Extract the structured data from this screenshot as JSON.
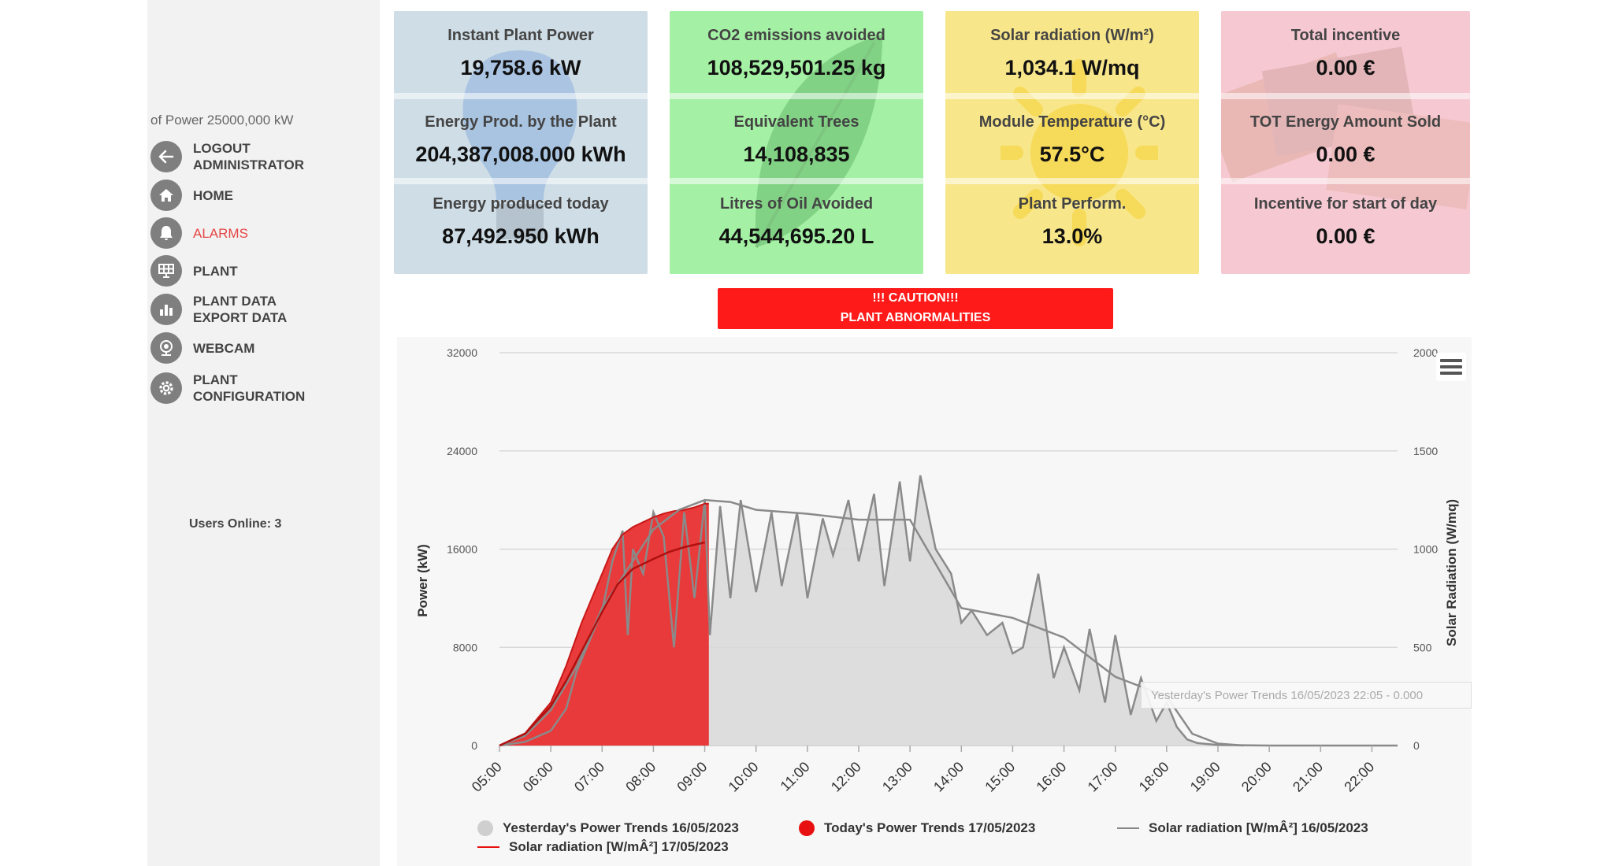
{
  "sidebar": {
    "power_note": "of Power 25000,000 kW",
    "menu": [
      {
        "label": "LOGOUT\nADMINISTRATOR",
        "icon": "arrow-left-icon"
      },
      {
        "label": "HOME",
        "icon": "home-icon"
      },
      {
        "label": "ALARMS",
        "icon": "bell-icon"
      },
      {
        "label": "PLANT",
        "icon": "solar-panel-icon"
      },
      {
        "label": "PLANT DATA\nEXPORT DATA",
        "icon": "bar-chart-icon"
      },
      {
        "label": "WEBCAM",
        "icon": "webcam-icon"
      },
      {
        "label": "PLANT\nCONFIGURATION",
        "icon": "gear-icon"
      }
    ],
    "users_online_label": "Users Online:",
    "users_online_count": "3"
  },
  "tiles": [
    {
      "color": "#cfdde6",
      "metrics": [
        {
          "label": "Instant Plant Power",
          "value": "19,758.6 kW"
        },
        {
          "label": "Energy Prod. by the Plant",
          "value": "204,387,008.000 kWh"
        },
        {
          "label": "Energy produced today",
          "value": "87,492.950 kWh"
        }
      ]
    },
    {
      "color": "#a4f0a4",
      "metrics": [
        {
          "label": "CO2 emissions avoided",
          "value": "108,529,501.25 kg"
        },
        {
          "label": "Equivalent Trees",
          "value": "14,108,835"
        },
        {
          "label": "Litres of Oil Avoided",
          "value": "44,544,695.20 L"
        }
      ]
    },
    {
      "color": "#f8e68a",
      "metrics": [
        {
          "label": "Solar radiation (W/m²)",
          "value": "1,034.1 W/mq"
        },
        {
          "label": "Module Temperature (°C)",
          "value": "57.5°C"
        },
        {
          "label": "Plant Perform.",
          "value": "13.0%"
        }
      ]
    },
    {
      "color": "#f6c9d2",
      "metrics": [
        {
          "label": "Total incentive",
          "value": "0.00 €"
        },
        {
          "label": "TOT Energy Amount Sold",
          "value": "0.00 €"
        },
        {
          "label": "Incentive for start of day",
          "value": "0.00 €"
        }
      ]
    }
  ],
  "caution": {
    "line1": "!!! CAUTION!!!",
    "line2": "PLANT ABNORMALITIES"
  },
  "tooltip": "Yesterday's Power Trends 16/05/2023 22:05 - 0.000",
  "colors": {
    "accent_red": "#ff1a1a",
    "yesterday_fill": "#d9d9d9",
    "yesterday_line": "#8a8a8a",
    "today_fill": "#e83030"
  },
  "chart_data": {
    "type": "area",
    "title": "",
    "x_ticks": [
      "05:00",
      "06:00",
      "07:00",
      "08:00",
      "09:00",
      "10:00",
      "11:00",
      "12:00",
      "13:00",
      "14:00",
      "15:00",
      "16:00",
      "17:00",
      "18:00",
      "19:00",
      "20:00",
      "21:00",
      "22:00"
    ],
    "y_left": {
      "label": "Power (kW)",
      "range": [
        0,
        32000
      ],
      "ticks": [
        "0",
        "8000",
        "16000",
        "24000",
        "32000"
      ]
    },
    "y_right": {
      "label": "Solar Radiation (W/mq)",
      "range": [
        0,
        2000
      ],
      "ticks": [
        "0",
        "500",
        "1000",
        "1500",
        "2000"
      ]
    },
    "x_hours_range": [
      5,
      22.5
    ],
    "series": [
      {
        "name": "Yesterday's Power Trends 16/05/2023",
        "type": "area",
        "axis": "left",
        "x": [
          5.0,
          5.5,
          6.0,
          6.3,
          6.5,
          6.8,
          7.0,
          7.2,
          7.4,
          7.5,
          7.6,
          7.8,
          8.0,
          8.2,
          8.4,
          8.6,
          8.8,
          9.0,
          9.1,
          9.3,
          9.5,
          9.7,
          10.0,
          10.3,
          10.5,
          10.8,
          11.0,
          11.3,
          11.5,
          11.8,
          12.0,
          12.3,
          12.5,
          12.8,
          13.0,
          13.2,
          13.5,
          13.8,
          14.0,
          14.2,
          14.5,
          14.8,
          15.0,
          15.2,
          15.5,
          15.8,
          16.0,
          16.3,
          16.5,
          16.8,
          17.0,
          17.3,
          17.5,
          17.8,
          18.0,
          18.2,
          18.4,
          18.6,
          19.0,
          20.0,
          21.0,
          22.0,
          22.5
        ],
        "values": [
          0,
          300,
          1200,
          3000,
          6000,
          9000,
          11000,
          15000,
          17500,
          9000,
          16000,
          14000,
          19000,
          17000,
          8000,
          19000,
          12000,
          20000,
          9000,
          19500,
          12000,
          20000,
          12500,
          19000,
          13000,
          19000,
          12000,
          18500,
          15500,
          20000,
          15000,
          20500,
          13000,
          21500,
          15000,
          22000,
          16000,
          14000,
          10000,
          11000,
          9000,
          10000,
          7500,
          8000,
          14000,
          5500,
          8000,
          4500,
          9500,
          3500,
          9000,
          2500,
          5500,
          2000,
          3500,
          1500,
          500,
          200,
          50,
          0,
          0,
          0,
          0
        ]
      },
      {
        "name": "Today's Power Trends 17/05/2023",
        "type": "area",
        "axis": "left",
        "x": [
          5.0,
          5.5,
          6.0,
          6.3,
          6.6,
          7.0,
          7.2,
          7.4,
          7.6,
          7.8,
          8.0,
          8.2,
          8.4,
          8.6,
          8.8,
          9.0,
          9.08
        ],
        "values": [
          0,
          1000,
          3500,
          6500,
          10000,
          14000,
          16000,
          17200,
          17800,
          18200,
          18600,
          18900,
          19100,
          19200,
          19400,
          19700,
          19700
        ]
      },
      {
        "name": "Solar radiation [W/mÂ²] 16/05/2023",
        "type": "line",
        "axis": "right",
        "x": [
          5.0,
          5.5,
          6.0,
          6.5,
          7.0,
          7.5,
          8.0,
          8.5,
          9.0,
          9.5,
          10.0,
          11.0,
          12.0,
          13.0,
          14.0,
          15.0,
          16.0,
          17.0,
          18.0,
          18.5,
          19.0,
          19.5
        ],
        "values": [
          0,
          50,
          180,
          400,
          700,
          900,
          1100,
          1200,
          1250,
          1240,
          1200,
          1180,
          1150,
          1150,
          700,
          650,
          550,
          350,
          250,
          60,
          10,
          0
        ]
      },
      {
        "name": "Solar radiation [W/mÂ²] 17/05/2023",
        "type": "line",
        "axis": "right",
        "x": [
          5.0,
          5.5,
          6.0,
          6.3,
          6.6,
          7.0,
          7.3,
          7.6,
          8.0,
          8.3,
          8.6,
          9.0
        ],
        "values": [
          0,
          60,
          200,
          330,
          480,
          680,
          820,
          900,
          950,
          985,
          1010,
          1034
        ]
      }
    ]
  }
}
